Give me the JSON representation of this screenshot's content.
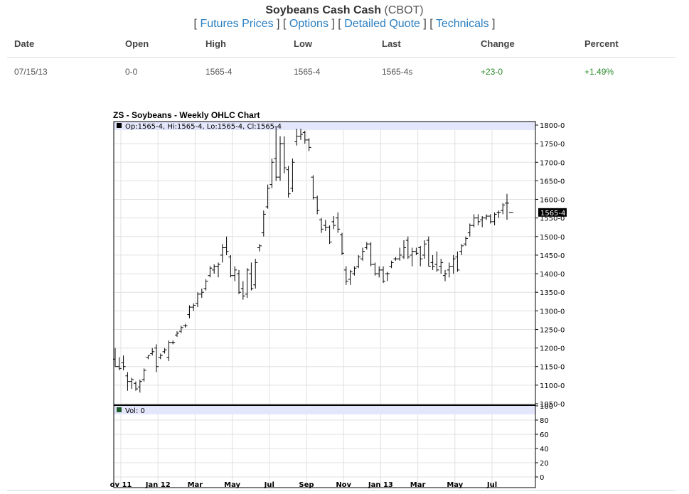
{
  "header": {
    "title": "Soybeans Cash Cash",
    "exchange": "(CBOT)",
    "links": [
      "Futures Prices",
      "Options",
      "Detailed Quote",
      "Technicals"
    ]
  },
  "quote": {
    "columns": [
      "Date",
      "Open",
      "High",
      "Low",
      "Last",
      "Change",
      "Percent"
    ],
    "row": [
      "07/15/13",
      "0-0",
      "1565-4",
      "1565-4",
      "1565-4s",
      "+23-0",
      "+1.49%"
    ]
  },
  "colors": {
    "link": "#2a7fc1",
    "positive": "#2a8a2a",
    "info_band": "#e4e6fb",
    "vol_swatch": "#1d5a2a",
    "last_label_bg": "#000000"
  },
  "chart_data": {
    "type": "ohlc",
    "title": "ZS - Soybeans - Weekly OHLC Chart",
    "info_label": "Op:1565-4, Hi:1565-4, Lo:1565-4, Cl:1565-4",
    "volume_label": "Vol: 0",
    "last_price_label": "1565-4",
    "ylim": [
      1050,
      1800
    ],
    "y_ticks": [
      "1800-0",
      "1750-0",
      "1700-0",
      "1650-0",
      "1600-0",
      "1550-0",
      "1500-0",
      "1450-0",
      "1400-0",
      "1350-0",
      "1300-0",
      "1250-0",
      "1200-0",
      "1150-0",
      "1100-0",
      "1050-0"
    ],
    "y_tick_values": [
      1800,
      1750,
      1700,
      1650,
      1600,
      1550,
      1500,
      1450,
      1400,
      1350,
      1300,
      1250,
      1200,
      1150,
      1100,
      1050
    ],
    "volume_ylim": [
      0,
      100
    ],
    "volume_ticks": [
      "100",
      "80",
      "60",
      "40",
      "20",
      "0"
    ],
    "volume_tick_values": [
      100,
      80,
      60,
      40,
      20,
      0
    ],
    "x_tick_labels": [
      "ov 11",
      "Jan 12",
      "Mar",
      "May",
      "Jul",
      "Sep",
      "Nov",
      "Jan 13",
      "Mar",
      "May",
      "Jul"
    ],
    "x_tick_weeks": [
      0,
      9,
      18,
      27,
      36,
      45,
      54,
      63,
      72,
      81,
      90
    ],
    "grid": true,
    "bars": [
      {
        "o": 1170,
        "h": 1200,
        "l": 1150,
        "c": 1150
      },
      {
        "o": 1150,
        "h": 1175,
        "l": 1140,
        "c": 1145
      },
      {
        "o": 1160,
        "h": 1180,
        "l": 1140,
        "c": 1150
      },
      {
        "o": 1125,
        "h": 1135,
        "l": 1085,
        "c": 1110
      },
      {
        "o": 1110,
        "h": 1120,
        "l": 1090,
        "c": 1115
      },
      {
        "o": 1105,
        "h": 1110,
        "l": 1085,
        "c": 1090
      },
      {
        "o": 1095,
        "h": 1115,
        "l": 1080,
        "c": 1110
      },
      {
        "o": 1115,
        "h": 1145,
        "l": 1110,
        "c": 1140
      },
      {
        "o": 1175,
        "h": 1180,
        "l": 1170,
        "c": 1180
      },
      {
        "o": 1185,
        "h": 1200,
        "l": 1180,
        "c": 1190
      },
      {
        "o": 1200,
        "h": 1210,
        "l": 1135,
        "c": 1150
      },
      {
        "o": 1175,
        "h": 1185,
        "l": 1170,
        "c": 1180
      },
      {
        "o": 1190,
        "h": 1200,
        "l": 1185,
        "c": 1195
      },
      {
        "o": 1175,
        "h": 1220,
        "l": 1165,
        "c": 1215
      },
      {
        "o": 1215,
        "h": 1220,
        "l": 1210,
        "c": 1215
      },
      {
        "o": 1235,
        "h": 1245,
        "l": 1230,
        "c": 1240
      },
      {
        "o": 1245,
        "h": 1260,
        "l": 1240,
        "c": 1255
      },
      {
        "o": 1260,
        "h": 1265,
        "l": 1255,
        "c": 1260
      },
      {
        "o": 1290,
        "h": 1315,
        "l": 1280,
        "c": 1310
      },
      {
        "o": 1310,
        "h": 1320,
        "l": 1300,
        "c": 1315
      },
      {
        "o": 1320,
        "h": 1350,
        "l": 1310,
        "c": 1345
      },
      {
        "o": 1345,
        "h": 1360,
        "l": 1335,
        "c": 1350
      },
      {
        "o": 1360,
        "h": 1385,
        "l": 1355,
        "c": 1380
      },
      {
        "o": 1395,
        "h": 1420,
        "l": 1390,
        "c": 1415
      },
      {
        "o": 1410,
        "h": 1425,
        "l": 1400,
        "c": 1420
      },
      {
        "o": 1420,
        "h": 1430,
        "l": 1390,
        "c": 1425
      },
      {
        "o": 1450,
        "h": 1480,
        "l": 1430,
        "c": 1470
      },
      {
        "o": 1470,
        "h": 1500,
        "l": 1450,
        "c": 1460
      },
      {
        "o": 1445,
        "h": 1450,
        "l": 1390,
        "c": 1395
      },
      {
        "o": 1395,
        "h": 1420,
        "l": 1380,
        "c": 1410
      },
      {
        "o": 1400,
        "h": 1410,
        "l": 1345,
        "c": 1350
      },
      {
        "o": 1360,
        "h": 1380,
        "l": 1330,
        "c": 1340
      },
      {
        "o": 1345,
        "h": 1415,
        "l": 1335,
        "c": 1410
      },
      {
        "o": 1400,
        "h": 1430,
        "l": 1355,
        "c": 1360
      },
      {
        "o": 1370,
        "h": 1440,
        "l": 1360,
        "c": 1430
      },
      {
        "o": 1470,
        "h": 1480,
        "l": 1460,
        "c": 1475
      },
      {
        "o": 1510,
        "h": 1570,
        "l": 1500,
        "c": 1560
      },
      {
        "o": 1580,
        "h": 1640,
        "l": 1575,
        "c": 1630
      },
      {
        "o": 1640,
        "h": 1710,
        "l": 1630,
        "c": 1700
      },
      {
        "o": 1710,
        "h": 1795,
        "l": 1650,
        "c": 1660
      },
      {
        "o": 1660,
        "h": 1770,
        "l": 1650,
        "c": 1750
      },
      {
        "o": 1750,
        "h": 1770,
        "l": 1670,
        "c": 1685
      },
      {
        "o": 1680,
        "h": 1690,
        "l": 1605,
        "c": 1615
      },
      {
        "o": 1630,
        "h": 1710,
        "l": 1620,
        "c": 1700
      },
      {
        "o": 1755,
        "h": 1790,
        "l": 1745,
        "c": 1770
      },
      {
        "o": 1770,
        "h": 1790,
        "l": 1760,
        "c": 1775
      },
      {
        "o": 1780,
        "h": 1785,
        "l": 1750,
        "c": 1760
      },
      {
        "o": 1760,
        "h": 1765,
        "l": 1730,
        "c": 1740
      },
      {
        "o": 1660,
        "h": 1665,
        "l": 1600,
        "c": 1605
      },
      {
        "o": 1605,
        "h": 1610,
        "l": 1560,
        "c": 1570
      },
      {
        "o": 1545,
        "h": 1550,
        "l": 1510,
        "c": 1520
      },
      {
        "o": 1530,
        "h": 1545,
        "l": 1515,
        "c": 1525
      },
      {
        "o": 1525,
        "h": 1530,
        "l": 1480,
        "c": 1485
      },
      {
        "o": 1540,
        "h": 1555,
        "l": 1520,
        "c": 1530
      },
      {
        "o": 1550,
        "h": 1565,
        "l": 1510,
        "c": 1520
      },
      {
        "o": 1505,
        "h": 1510,
        "l": 1450,
        "c": 1455
      },
      {
        "o": 1410,
        "h": 1420,
        "l": 1370,
        "c": 1380
      },
      {
        "o": 1385,
        "h": 1410,
        "l": 1370,
        "c": 1405
      },
      {
        "o": 1400,
        "h": 1420,
        "l": 1395,
        "c": 1415
      },
      {
        "o": 1420,
        "h": 1450,
        "l": 1415,
        "c": 1445
      },
      {
        "o": 1440,
        "h": 1470,
        "l": 1435,
        "c": 1460
      },
      {
        "o": 1470,
        "h": 1485,
        "l": 1465,
        "c": 1480
      },
      {
        "o": 1480,
        "h": 1485,
        "l": 1420,
        "c": 1425
      },
      {
        "o": 1425,
        "h": 1430,
        "l": 1395,
        "c": 1400
      },
      {
        "o": 1400,
        "h": 1420,
        "l": 1390,
        "c": 1410
      },
      {
        "o": 1410,
        "h": 1420,
        "l": 1375,
        "c": 1380
      },
      {
        "o": 1400,
        "h": 1405,
        "l": 1380,
        "c": 1400
      },
      {
        "o": 1420,
        "h": 1435,
        "l": 1415,
        "c": 1430
      },
      {
        "o": 1440,
        "h": 1445,
        "l": 1435,
        "c": 1440
      },
      {
        "o": 1440,
        "h": 1470,
        "l": 1435,
        "c": 1450
      },
      {
        "o": 1445,
        "h": 1490,
        "l": 1440,
        "c": 1470
      },
      {
        "o": 1490,
        "h": 1500,
        "l": 1440,
        "c": 1445
      },
      {
        "o": 1450,
        "h": 1470,
        "l": 1420,
        "c": 1460
      },
      {
        "o": 1460,
        "h": 1470,
        "l": 1450,
        "c": 1455
      },
      {
        "o": 1470,
        "h": 1475,
        "l": 1420,
        "c": 1440
      },
      {
        "o": 1450,
        "h": 1490,
        "l": 1440,
        "c": 1480
      },
      {
        "o": 1490,
        "h": 1500,
        "l": 1420,
        "c": 1420
      },
      {
        "o": 1430,
        "h": 1450,
        "l": 1410,
        "c": 1420
      },
      {
        "o": 1425,
        "h": 1460,
        "l": 1405,
        "c": 1410
      },
      {
        "o": 1420,
        "h": 1440,
        "l": 1400,
        "c": 1430
      },
      {
        "o": 1395,
        "h": 1410,
        "l": 1380,
        "c": 1400
      },
      {
        "o": 1410,
        "h": 1430,
        "l": 1390,
        "c": 1420
      },
      {
        "o": 1420,
        "h": 1450,
        "l": 1400,
        "c": 1440
      },
      {
        "o": 1445,
        "h": 1460,
        "l": 1405,
        "c": 1410
      },
      {
        "o": 1460,
        "h": 1480,
        "l": 1450,
        "c": 1475
      },
      {
        "o": 1480,
        "h": 1500,
        "l": 1475,
        "c": 1495
      },
      {
        "o": 1510,
        "h": 1535,
        "l": 1500,
        "c": 1530
      },
      {
        "o": 1530,
        "h": 1560,
        "l": 1525,
        "c": 1550
      },
      {
        "o": 1550,
        "h": 1560,
        "l": 1530,
        "c": 1540
      },
      {
        "o": 1545,
        "h": 1555,
        "l": 1525,
        "c": 1550
      },
      {
        "o": 1550,
        "h": 1560,
        "l": 1545,
        "c": 1555
      },
      {
        "o": 1555,
        "h": 1560,
        "l": 1535,
        "c": 1540
      },
      {
        "o": 1540,
        "h": 1565,
        "l": 1530,
        "c": 1560
      },
      {
        "o": 1565,
        "h": 1570,
        "l": 1550,
        "c": 1565
      },
      {
        "o": 1570,
        "h": 1590,
        "l": 1560,
        "c": 1585
      },
      {
        "o": 1590,
        "h": 1615,
        "l": 1545,
        "c": 1590
      },
      {
        "o": 1565,
        "h": 1565,
        "l": 1565,
        "c": 1565
      }
    ]
  }
}
